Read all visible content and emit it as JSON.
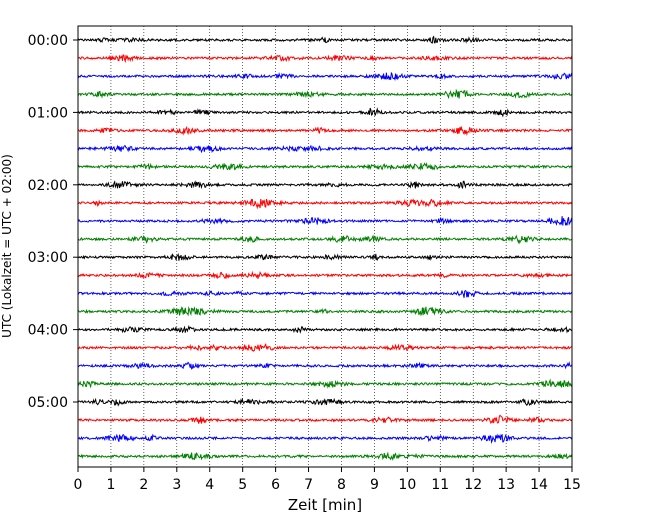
{
  "chart_data": {
    "type": "line",
    "title": "",
    "xlabel": "Zeit  [min]",
    "ylabel": "UTC (Lokalzeit = UTC + 02:00)",
    "xlim": [
      0,
      15
    ],
    "x_ticks": [
      "0",
      "1",
      "2",
      "3",
      "4",
      "5",
      "6",
      "7",
      "8",
      "9",
      "10",
      "11",
      "12",
      "13",
      "14",
      "15"
    ],
    "y_tick_labels": [
      "00:00",
      "01:00",
      "02:00",
      "03:00",
      "04:00",
      "05:00"
    ],
    "trace_interval_min": 15,
    "trace_count": 24,
    "trace_colors": [
      "#000000",
      "#ff0000",
      "#0000ff",
      "#008000"
    ],
    "grid": "vertical dotted lines at each minute"
  }
}
